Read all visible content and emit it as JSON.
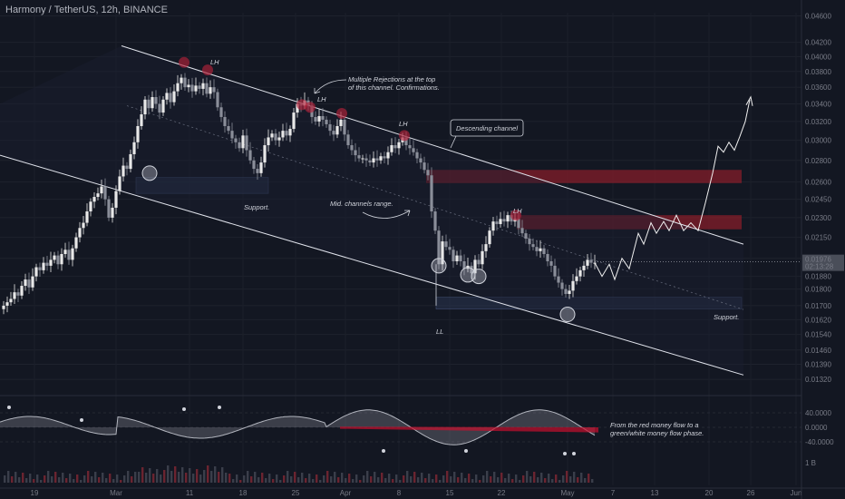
{
  "header": {
    "title": "Harmony / TetherUS, 12h, BINANCE"
  },
  "price_label": {
    "value": "0.01976",
    "countdown": "02:13:28"
  },
  "annotations": {
    "rejections": "Multiple Rejections at the top",
    "rejections2": "of this channel. Confirmations.",
    "descending": "Descending channel",
    "mid": "Mid. channels range.",
    "support1": "Support.",
    "support2": "Support.",
    "lh": "LH",
    "ll": "LL",
    "flow1": "From the red money flow to a",
    "flow2": "green/white money flow phase."
  },
  "colors": {
    "background": "#131722",
    "up_candle": "#e8e8e8",
    "down_candle": "#8a8e99",
    "resistance_zone": "#8b1e2a",
    "support_zone": "#2a3550",
    "channel_line": "#e0e3eb",
    "oscillator": "#b2b5be",
    "red_flow": "#c8102e"
  },
  "chart_data": {
    "type": "candlestick",
    "y_scale": "log",
    "ylim": [
      0.0128,
      0.0465
    ],
    "y_ticks": [
      "0.04600",
      "0.04200",
      "0.04000",
      "0.03800",
      "0.03600",
      "0.03400",
      "0.03200",
      "0.03000",
      "0.02800",
      "0.02600",
      "0.02450",
      "0.02300",
      "0.02150",
      "0.02000",
      "0.01880",
      "0.01800",
      "0.01700",
      "0.01620",
      "0.01540",
      "0.01460",
      "0.01390",
      "0.01320"
    ],
    "x_ticks": [
      "19",
      "Mar",
      "11",
      "18",
      "25",
      "Apr",
      "8",
      "15",
      "22",
      "May",
      "7",
      "13",
      "20",
      "26",
      "Jun"
    ],
    "oscillator_ticks": [
      "40.0000",
      "0.0000",
      "-40.0000"
    ],
    "volume_tick": "1 B",
    "last_price": 0.01976,
    "price_path": [
      [
        0,
        0.0168
      ],
      [
        4,
        0.017
      ],
      [
        8,
        0.0172
      ],
      [
        12,
        0.0174
      ],
      [
        16,
        0.0178
      ],
      [
        20,
        0.0176
      ],
      [
        24,
        0.0182
      ],
      [
        28,
        0.0186
      ],
      [
        32,
        0.0181
      ],
      [
        36,
        0.0188
      ],
      [
        40,
        0.0194
      ],
      [
        44,
        0.0192
      ],
      [
        48,
        0.0197
      ],
      [
        52,
        0.0195
      ],
      [
        56,
        0.0199
      ],
      [
        60,
        0.0202
      ],
      [
        64,
        0.0196
      ],
      [
        68,
        0.0203
      ],
      [
        72,
        0.0206
      ],
      [
        76,
        0.0199
      ],
      [
        80,
        0.0207
      ],
      [
        84,
        0.0215
      ],
      [
        88,
        0.0222
      ],
      [
        92,
        0.0226
      ],
      [
        96,
        0.0235
      ],
      [
        100,
        0.0243
      ],
      [
        104,
        0.0247
      ],
      [
        108,
        0.025
      ],
      [
        112,
        0.0256
      ],
      [
        116,
        0.0245
      ],
      [
        120,
        0.023
      ],
      [
        124,
        0.0238
      ],
      [
        128,
        0.0252
      ],
      [
        132,
        0.0265
      ],
      [
        136,
        0.0275
      ],
      [
        140,
        0.0272
      ],
      [
        144,
        0.0286
      ],
      [
        148,
        0.0298
      ],
      [
        152,
        0.0315
      ],
      [
        156,
        0.0328
      ],
      [
        160,
        0.0345
      ],
      [
        164,
        0.0335
      ],
      [
        168,
        0.0348
      ],
      [
        172,
        0.034
      ],
      [
        176,
        0.033
      ],
      [
        180,
        0.0345
      ],
      [
        184,
        0.0353
      ],
      [
        188,
        0.0342
      ],
      [
        192,
        0.0355
      ],
      [
        196,
        0.0365
      ],
      [
        200,
        0.0372
      ],
      [
        204,
        0.036
      ],
      [
        208,
        0.0363
      ],
      [
        212,
        0.0355
      ],
      [
        216,
        0.0362
      ],
      [
        220,
        0.0358
      ],
      [
        224,
        0.0365
      ],
      [
        228,
        0.0352
      ],
      [
        232,
        0.036
      ],
      [
        236,
        0.0354
      ],
      [
        240,
        0.0336
      ],
      [
        244,
        0.0325
      ],
      [
        248,
        0.0315
      ],
      [
        252,
        0.031
      ],
      [
        256,
        0.0302
      ],
      [
        260,
        0.0298
      ],
      [
        264,
        0.0292
      ],
      [
        268,
        0.0305
      ],
      [
        272,
        0.029
      ],
      [
        276,
        0.028
      ],
      [
        280,
        0.0272
      ],
      [
        284,
        0.0268
      ],
      [
        288,
        0.0278
      ],
      [
        292,
        0.0295
      ],
      [
        296,
        0.0303
      ],
      [
        300,
        0.0307
      ],
      [
        304,
        0.03
      ],
      [
        308,
        0.0303
      ],
      [
        312,
        0.031
      ],
      [
        316,
        0.0305
      ],
      [
        320,
        0.0312
      ],
      [
        324,
        0.033
      ],
      [
        328,
        0.034
      ],
      [
        332,
        0.0338
      ],
      [
        336,
        0.0344
      ],
      [
        340,
        0.0338
      ],
      [
        344,
        0.0325
      ],
      [
        348,
        0.032
      ],
      [
        352,
        0.0326
      ],
      [
        356,
        0.0322
      ],
      [
        360,
        0.0317
      ],
      [
        364,
        0.031
      ],
      [
        368,
        0.0306
      ],
      [
        372,
        0.0315
      ],
      [
        376,
        0.0322
      ],
      [
        380,
        0.0306
      ],
      [
        384,
        0.0295
      ],
      [
        388,
        0.029
      ],
      [
        392,
        0.0285
      ],
      [
        396,
        0.0282
      ],
      [
        400,
        0.0282
      ],
      [
        404,
        0.028
      ],
      [
        408,
        0.0278
      ],
      [
        412,
        0.0282
      ],
      [
        416,
        0.028
      ],
      [
        420,
        0.0284
      ],
      [
        424,
        0.0282
      ],
      [
        428,
        0.0288
      ],
      [
        432,
        0.0295
      ],
      [
        436,
        0.0292
      ],
      [
        440,
        0.0298
      ],
      [
        444,
        0.0303
      ],
      [
        448,
        0.0295
      ],
      [
        452,
        0.0292
      ],
      [
        456,
        0.0288
      ],
      [
        460,
        0.0282
      ],
      [
        464,
        0.0278
      ],
      [
        468,
        0.0271
      ],
      [
        472,
        0.0266
      ],
      [
        476,
        0.0235
      ],
      [
        480,
        0.022
      ],
      [
        484,
        0.0196
      ],
      [
        488,
        0.0212
      ],
      [
        492,
        0.0208
      ],
      [
        496,
        0.0206
      ],
      [
        500,
        0.0198
      ],
      [
        504,
        0.0202
      ],
      [
        508,
        0.0198
      ],
      [
        512,
        0.0193
      ],
      [
        516,
        0.0195
      ],
      [
        520,
        0.019
      ],
      [
        524,
        0.0199
      ],
      [
        528,
        0.0196
      ],
      [
        532,
        0.0205
      ],
      [
        536,
        0.021
      ],
      [
        540,
        0.022
      ],
      [
        544,
        0.0227
      ],
      [
        548,
        0.0225
      ],
      [
        552,
        0.0229
      ],
      [
        556,
        0.0227
      ],
      [
        560,
        0.0232
      ],
      [
        564,
        0.0227
      ],
      [
        568,
        0.0229
      ],
      [
        572,
        0.0222
      ],
      [
        576,
        0.0218
      ],
      [
        580,
        0.0214
      ],
      [
        584,
        0.021
      ],
      [
        588,
        0.0208
      ],
      [
        592,
        0.0205
      ],
      [
        596,
        0.0207
      ],
      [
        600,
        0.0203
      ],
      [
        604,
        0.0198
      ],
      [
        608,
        0.0195
      ],
      [
        612,
        0.0188
      ],
      [
        616,
        0.0184
      ],
      [
        620,
        0.018
      ],
      [
        624,
        0.0177
      ],
      [
        628,
        0.0179
      ],
      [
        632,
        0.0185
      ],
      [
        636,
        0.0188
      ],
      [
        640,
        0.0192
      ],
      [
        644,
        0.0195
      ],
      [
        648,
        0.0199
      ],
      [
        652,
        0.0197
      ],
      [
        656,
        0.0197
      ]
    ],
    "projection_path": [
      [
        656,
        0.0197
      ],
      [
        664,
        0.0188
      ],
      [
        672,
        0.0196
      ],
      [
        678,
        0.0186
      ],
      [
        686,
        0.02
      ],
      [
        694,
        0.0193
      ],
      [
        704,
        0.0218
      ],
      [
        710,
        0.021
      ],
      [
        718,
        0.0226
      ],
      [
        724,
        0.0218
      ],
      [
        732,
        0.0227
      ],
      [
        738,
        0.022
      ],
      [
        746,
        0.0232
      ],
      [
        754,
        0.022
      ],
      [
        762,
        0.0226
      ],
      [
        770,
        0.022
      ],
      [
        778,
        0.0242
      ],
      [
        786,
        0.0268
      ],
      [
        792,
        0.0294
      ],
      [
        798,
        0.0288
      ],
      [
        804,
        0.0298
      ],
      [
        810,
        0.029
      ],
      [
        816,
        0.0304
      ],
      [
        822,
        0.032
      ],
      [
        827,
        0.0345
      ]
    ],
    "zones": [
      {
        "kind": "resistance",
        "x0": 470,
        "x1": 818,
        "y_high": 0.0271,
        "y_low": 0.0259
      },
      {
        "kind": "resistance",
        "x0": 570,
        "x1": 818,
        "y_high": 0.0232,
        "y_low": 0.0221
      },
      {
        "kind": "support",
        "x0": 150,
        "x1": 296,
        "y_high": 0.0264,
        "y_low": 0.025
      },
      {
        "kind": "support",
        "x0": 481,
        "x1": 818,
        "y_high": 0.0175,
        "y_low": 0.0168
      }
    ],
    "channel": {
      "upper": [
        [
          134,
          0.0415
        ],
        [
          820,
          0.021
        ]
      ],
      "lower": [
        [
          0,
          0.0285
        ],
        [
          820,
          0.0134
        ]
      ]
    }
  }
}
